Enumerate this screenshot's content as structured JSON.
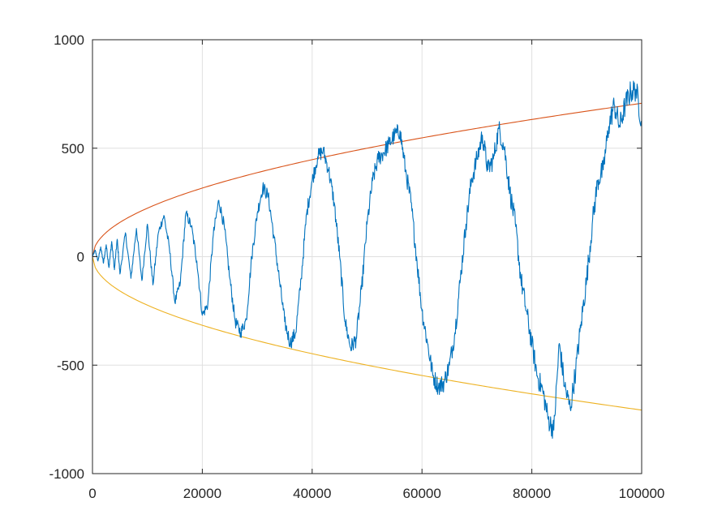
{
  "chart_data": {
    "type": "line",
    "title": "",
    "xlabel": "",
    "ylabel": "",
    "xlim": [
      0,
      100000
    ],
    "ylim": [
      -1000,
      1000
    ],
    "x_ticks": [
      0,
      20000,
      40000,
      60000,
      80000,
      100000
    ],
    "x_tick_labels": [
      "0",
      "20000",
      "40000",
      "60000",
      "80000",
      "100000"
    ],
    "y_ticks": [
      -1000,
      -500,
      0,
      500,
      1000
    ],
    "y_tick_labels": [
      "-1000",
      "-500",
      "0",
      "500",
      "1000"
    ],
    "grid": true,
    "legend": "none",
    "series": [
      {
        "color": "#0072bd",
        "points": [
          [
            0,
            0
          ],
          [
            500,
            30
          ],
          [
            1000,
            -20
          ],
          [
            1500,
            45
          ],
          [
            2000,
            -30
          ],
          [
            2500,
            55
          ],
          [
            3000,
            -50
          ],
          [
            3500,
            70
          ],
          [
            4000,
            -60
          ],
          [
            4500,
            80
          ],
          [
            5000,
            -80
          ],
          [
            6000,
            110
          ],
          [
            7000,
            -100
          ],
          [
            8000,
            130
          ],
          [
            9000,
            -110
          ],
          [
            10000,
            150
          ],
          [
            11000,
            -130
          ],
          [
            12000,
            110
          ],
          [
            13000,
            190
          ],
          [
            14000,
            40
          ],
          [
            15000,
            -210
          ],
          [
            16000,
            -120
          ],
          [
            17000,
            200
          ],
          [
            18000,
            140
          ],
          [
            19000,
            -20
          ],
          [
            20000,
            -270
          ],
          [
            21000,
            -220
          ],
          [
            22000,
            100
          ],
          [
            23000,
            260
          ],
          [
            24000,
            140
          ],
          [
            25000,
            -100
          ],
          [
            26000,
            -300
          ],
          [
            27000,
            -350
          ],
          [
            28000,
            -290
          ],
          [
            29000,
            0
          ],
          [
            30000,
            200
          ],
          [
            31000,
            320
          ],
          [
            32000,
            280
          ],
          [
            33000,
            100
          ],
          [
            34000,
            -100
          ],
          [
            35000,
            -300
          ],
          [
            36000,
            -400
          ],
          [
            37000,
            -350
          ],
          [
            38000,
            -100
          ],
          [
            39000,
            200
          ],
          [
            40000,
            350
          ],
          [
            41000,
            460
          ],
          [
            42000,
            490
          ],
          [
            43000,
            400
          ],
          [
            44000,
            250
          ],
          [
            45000,
            0
          ],
          [
            46000,
            -300
          ],
          [
            47000,
            -420
          ],
          [
            48000,
            -380
          ],
          [
            49000,
            -150
          ],
          [
            50000,
            150
          ],
          [
            51000,
            350
          ],
          [
            52000,
            450
          ],
          [
            53000,
            480
          ],
          [
            54000,
            520
          ],
          [
            55000,
            560
          ],
          [
            56000,
            580
          ],
          [
            57000,
            400
          ],
          [
            58000,
            250
          ],
          [
            59000,
            0
          ],
          [
            60000,
            -250
          ],
          [
            61000,
            -400
          ],
          [
            62000,
            -550
          ],
          [
            63000,
            -600
          ],
          [
            64000,
            -580
          ],
          [
            65000,
            -500
          ],
          [
            66000,
            -350
          ],
          [
            67000,
            -100
          ],
          [
            68000,
            150
          ],
          [
            69000,
            350
          ],
          [
            70000,
            450
          ],
          [
            71000,
            560
          ],
          [
            72000,
            400
          ],
          [
            73000,
            450
          ],
          [
            74000,
            590
          ],
          [
            75000,
            500
          ],
          [
            76000,
            300
          ],
          [
            77000,
            150
          ],
          [
            78000,
            -100
          ],
          [
            79000,
            -250
          ],
          [
            80000,
            -400
          ],
          [
            81000,
            -550
          ],
          [
            82000,
            -620
          ],
          [
            83000,
            -750
          ],
          [
            84000,
            -800
          ],
          [
            85000,
            -400
          ],
          [
            86000,
            -600
          ],
          [
            87000,
            -700
          ],
          [
            88000,
            -520
          ],
          [
            89000,
            -300
          ],
          [
            90000,
            -100
          ],
          [
            91000,
            150
          ],
          [
            92000,
            350
          ],
          [
            93000,
            400
          ],
          [
            94000,
            600
          ],
          [
            95000,
            700
          ],
          [
            96000,
            600
          ],
          [
            97000,
            700
          ],
          [
            98000,
            760
          ],
          [
            99000,
            770
          ],
          [
            100000,
            620
          ]
        ]
      },
      {
        "color": "#d95319",
        "function": "sqrt",
        "coefficient": 2.236
      },
      {
        "color": "#edb120",
        "function": "-sqrt",
        "coefficient": 2.236
      }
    ]
  }
}
